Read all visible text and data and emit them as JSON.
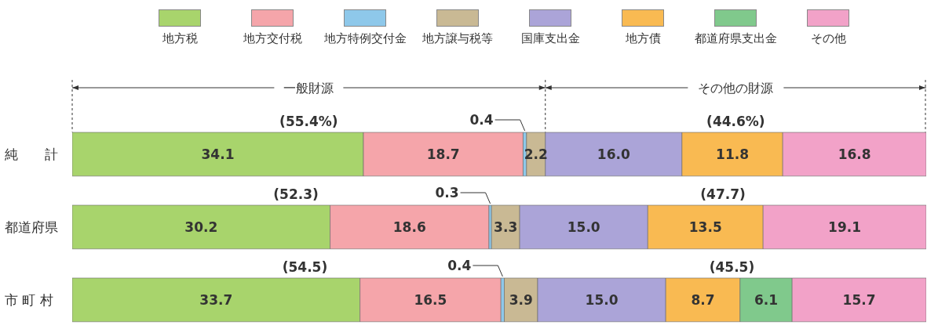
{
  "chart_data": {
    "type": "bar",
    "orientation": "horizontal",
    "stacked": true,
    "data_labels": true,
    "legend": "top",
    "categories": [
      "純　　計",
      "都道府県",
      "市 町 村"
    ],
    "series": [
      {
        "name": "地方税",
        "color": "#a8d46c",
        "values": [
          34.1,
          30.2,
          33.7
        ]
      },
      {
        "name": "地方交付税",
        "color": "#f5a5aa",
        "values": [
          18.7,
          18.6,
          16.5
        ]
      },
      {
        "name": "地方特例交付金",
        "color": "#8ec8ea",
        "values": [
          0.4,
          0.3,
          0.4
        ]
      },
      {
        "name": "地方譲与税等",
        "color": "#c9b994",
        "values": [
          2.2,
          3.3,
          3.9
        ]
      },
      {
        "name": "国庫支出金",
        "color": "#aba4d8",
        "values": [
          16.0,
          15.0,
          15.0
        ],
        "value_labels": [
          "16.0",
          "15.0",
          "15.0"
        ]
      },
      {
        "name": "地方債",
        "color": "#f9ba52",
        "values": [
          11.8,
          13.5,
          8.7
        ]
      },
      {
        "name": "都道府県支出金",
        "color": "#80c98c",
        "values": [
          null,
          null,
          6.1
        ]
      },
      {
        "name": "その他",
        "color": "#f2a2c8",
        "values": [
          16.8,
          19.1,
          15.7
        ]
      }
    ],
    "annotations": [
      "一般財源",
      "その他の財源",
      "(55.4%)",
      "(44.6%)",
      "(52.3)",
      "(47.7)",
      "(54.5)",
      "(45.5)"
    ]
  }
}
